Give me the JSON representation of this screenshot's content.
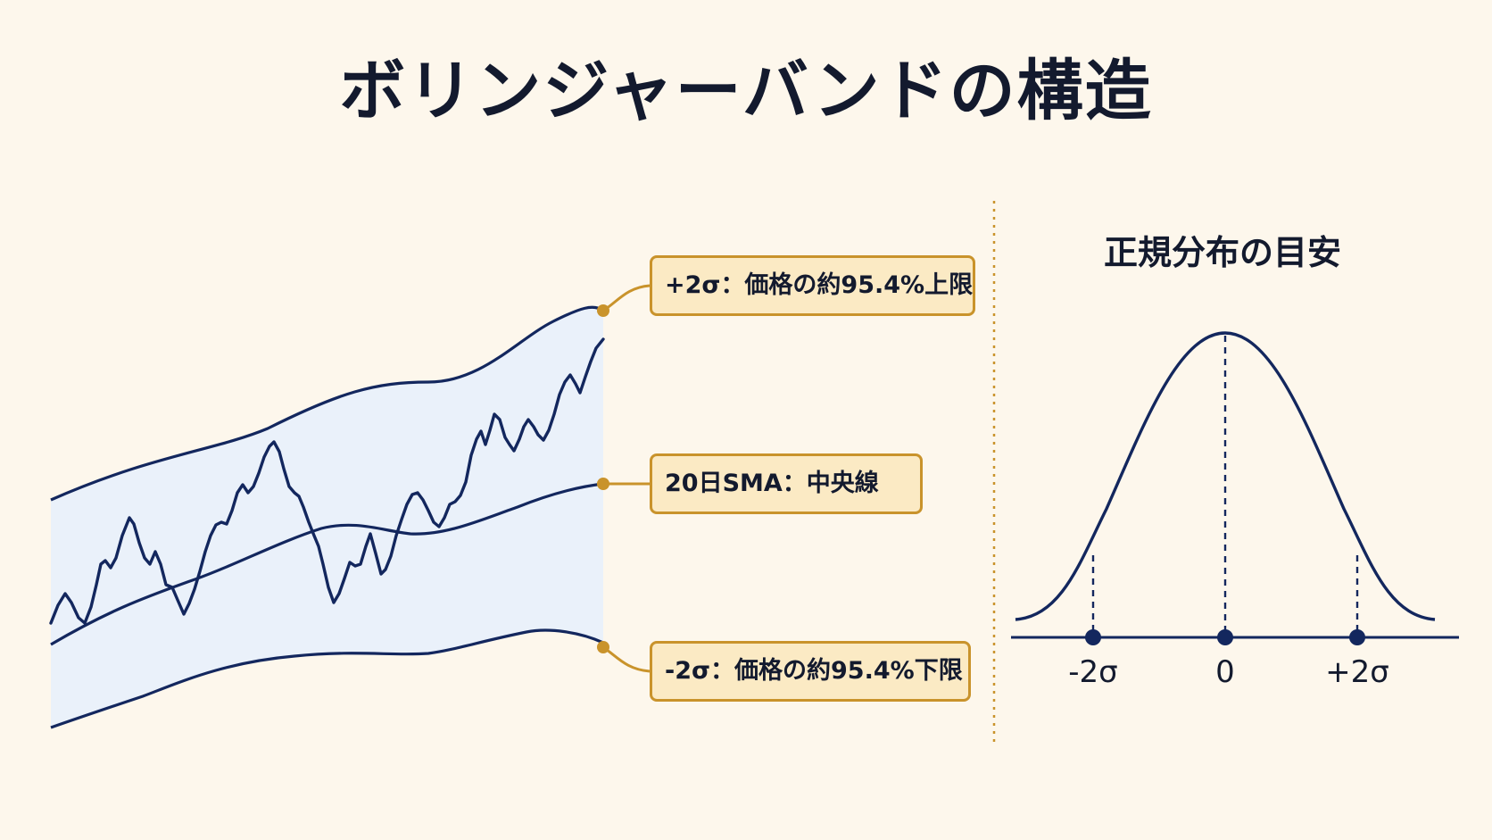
{
  "title": "ボリンジャーバンドの構造",
  "callouts": {
    "upper": "+2σ：価格の約95.4%上限",
    "middle": "20日SMA：中央線",
    "lower": "-2σ：価格の約95.4%下限"
  },
  "distribution": {
    "title": "正規分布の目安",
    "ticks": [
      "-2σ",
      "0",
      "+2σ"
    ]
  },
  "colors": {
    "background": "#fdf7ec",
    "navy": "#13275e",
    "band_fill": "#eaf1fa",
    "accent": "#c9932b",
    "callout_fill": "#fbeac4"
  }
}
